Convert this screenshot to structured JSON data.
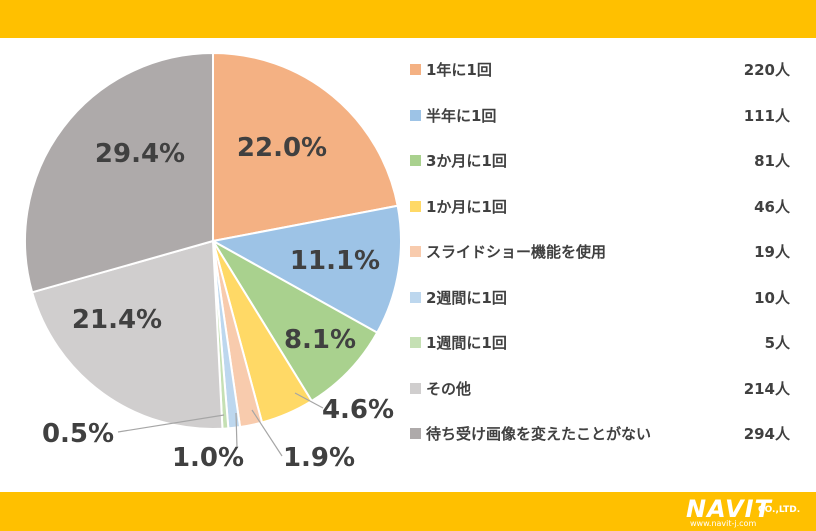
{
  "brand": {
    "header_color": "#FFC000",
    "logo_text": "NAVIT",
    "logo_suffix": "CO.,LTD.",
    "logo_url": "www.navit-j.com"
  },
  "chart_data": {
    "type": "pie",
    "categories": [
      "1年に1回",
      "半年に1回",
      "3か月に1回",
      "1か月に1回",
      "スライドショー機能を使用",
      "2週間に1回",
      "1週間に1回",
      "その他",
      "待ち受け画像を変えたことがない"
    ],
    "counts": [
      "220人",
      "111人",
      "81人",
      "46人",
      "19人",
      "10人",
      "5人",
      "214人",
      "294人"
    ],
    "values": [
      22.0,
      11.1,
      8.1,
      4.6,
      1.9,
      1.0,
      0.5,
      21.4,
      29.4
    ],
    "percent_labels": [
      "22.0%",
      "11.1%",
      "8.1%",
      "4.6%",
      "1.9%",
      "1.0%",
      "0.5%",
      "21.4%",
      "29.4%"
    ],
    "colors": [
      "#F4B183",
      "#9DC3E6",
      "#A9D18E",
      "#FFD966",
      "#F8CBAD",
      "#BDD7EE",
      "#C5E0B4",
      "#D0CECE",
      "#AEAAAA"
    ],
    "legend_position": "right"
  }
}
